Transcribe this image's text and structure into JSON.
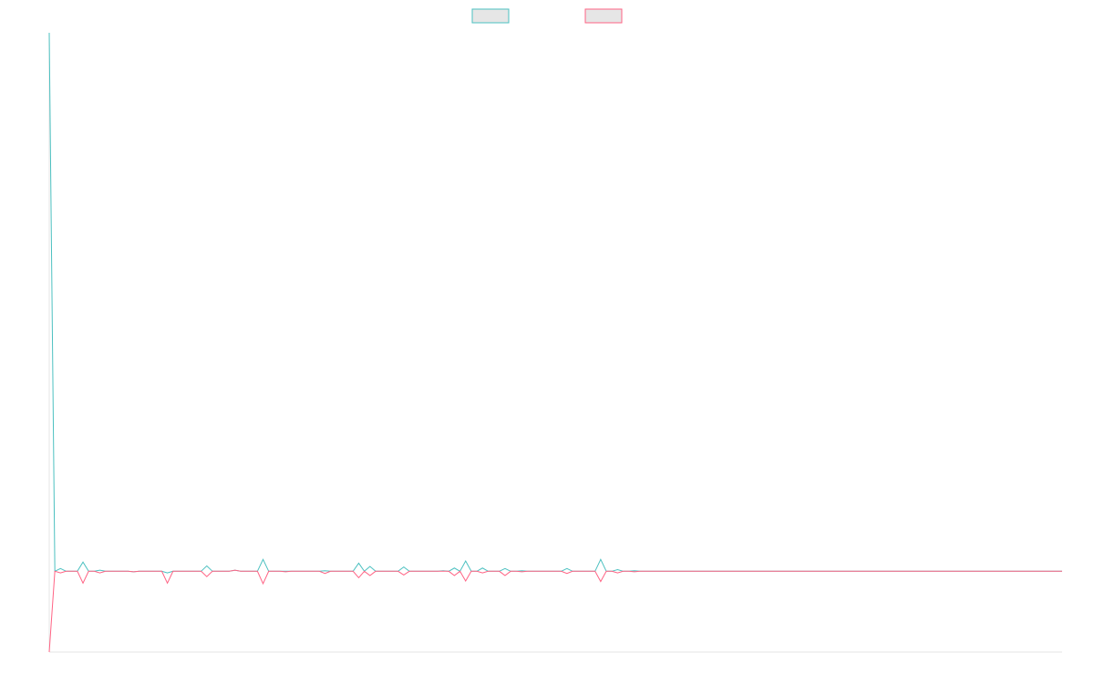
{
  "chart_data": {
    "type": "line",
    "x": [
      0,
      1,
      2,
      3,
      5,
      6,
      7,
      8,
      9,
      10,
      14,
      15,
      16,
      20,
      21,
      22,
      27,
      28,
      29,
      32,
      33,
      34,
      37,
      38,
      39,
      41,
      42,
      43,
      48,
      49,
      50,
      54,
      55,
      56,
      57,
      58,
      62,
      63,
      64,
      69,
      70,
      71,
      72,
      73,
      74,
      75,
      76,
      77,
      78,
      80,
      81,
      82,
      83,
      84,
      85,
      91,
      92,
      93,
      97,
      98,
      99,
      100,
      101,
      102,
      103,
      104,
      105,
      180
    ],
    "series": [
      {
        "color": "#4bc0c0",
        "values": [
          100,
          0,
          0.5,
          0,
          0,
          1.7,
          0,
          0,
          0.2,
          0,
          0,
          -0.1,
          0,
          0,
          -0.3,
          0,
          0,
          1,
          0,
          0,
          0.2,
          0,
          0,
          2.2,
          0,
          0,
          0,
          0,
          0,
          0.1,
          0,
          0,
          1.5,
          0,
          0.9,
          0,
          0,
          0.8,
          0,
          0,
          0.1,
          0,
          0.6,
          0,
          1.9,
          0,
          0,
          0.6,
          0,
          0,
          0.5,
          0,
          0,
          0.1,
          0,
          0,
          0.5,
          0,
          0,
          2.2,
          0,
          0,
          0.3,
          0,
          0,
          0.1,
          0,
          0
        ]
      },
      {
        "color": "#ff6384",
        "values": [
          -15,
          0,
          -0.3,
          0,
          0,
          -2.2,
          0,
          0,
          -0.3,
          0,
          0,
          -0.1,
          0,
          0,
          -2.2,
          0,
          0,
          -1,
          0,
          0,
          0.2,
          0,
          0,
          -2.3,
          0,
          0,
          -0.1,
          0,
          0,
          -0.4,
          0,
          0,
          -1.2,
          0,
          -0.8,
          0,
          0,
          -0.7,
          0,
          0,
          0,
          0,
          -0.8,
          0,
          -1.8,
          0,
          0,
          -0.3,
          0,
          0,
          -0.8,
          0,
          0,
          -0.1,
          0,
          0,
          -0.4,
          0,
          0,
          -1.9,
          0,
          0,
          -0.3,
          0,
          0,
          -0.1,
          0,
          0
        ]
      }
    ],
    "xlim": [
      0,
      180
    ],
    "ylim": [
      -15,
      100
    ]
  }
}
